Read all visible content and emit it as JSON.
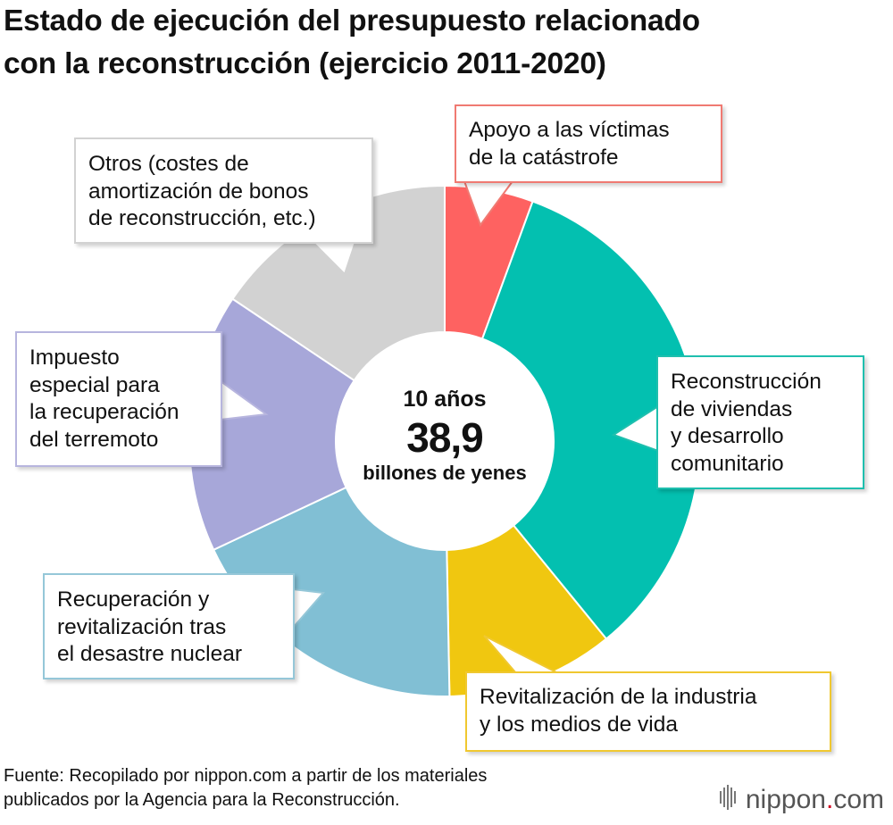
{
  "title": {
    "line1": "Estado de ejecución del presupuesto relacionado",
    "line2": "con la reconstrucción (ejercicio 2011-2020)"
  },
  "chart_data": {
    "type": "pie",
    "categories": [
      "Apoyo a las víctimas de la catástrofe",
      "Reconstrucción de viviendas y desarrollo comunitario",
      "Revitalización de la industria y los medios de vida",
      "Recuperación y revitalización tras el desastre nuclear",
      "Impuesto especial para la recuperación del terremoto",
      "Otros (costes de amortización de bonos de reconstrucción, etc.)"
    ],
    "values": [
      5.6,
      33.5,
      10.6,
      18.3,
      16.4,
      15.6
    ],
    "colors": [
      "#fe6261",
      "#03c0b0",
      "#f0c710",
      "#81bfd4",
      "#a7a7d9",
      "#d2d2d2"
    ],
    "total": {
      "years": "10 años",
      "value": "38,9",
      "unit": "billones de yenes"
    }
  },
  "labels": {
    "victimas": [
      "Apoyo a las víctimas",
      "de la catástrofe"
    ],
    "viviendas": [
      "Reconstrucción",
      "de viviendas",
      "y desarrollo",
      "comunitario"
    ],
    "industria": [
      "Revitalización de la industria",
      "y los medios de vida"
    ],
    "nuclear": [
      "Recuperación y",
      "revitalización tras",
      "el desastre nuclear"
    ],
    "impuesto": [
      "Impuesto",
      "especial para",
      "la recuperación",
      "del terremoto"
    ],
    "otros": [
      "Otros (costes de",
      "amortización de bonos",
      "de reconstrucción, etc.)"
    ]
  },
  "source": {
    "line1": "Fuente: Recopilado por nippon.com a partir de los materiales",
    "line2": "publicados por la Agencia para la Reconstrucción."
  },
  "logo": {
    "name": "nippon",
    "dot": ".",
    "tld": "com"
  }
}
